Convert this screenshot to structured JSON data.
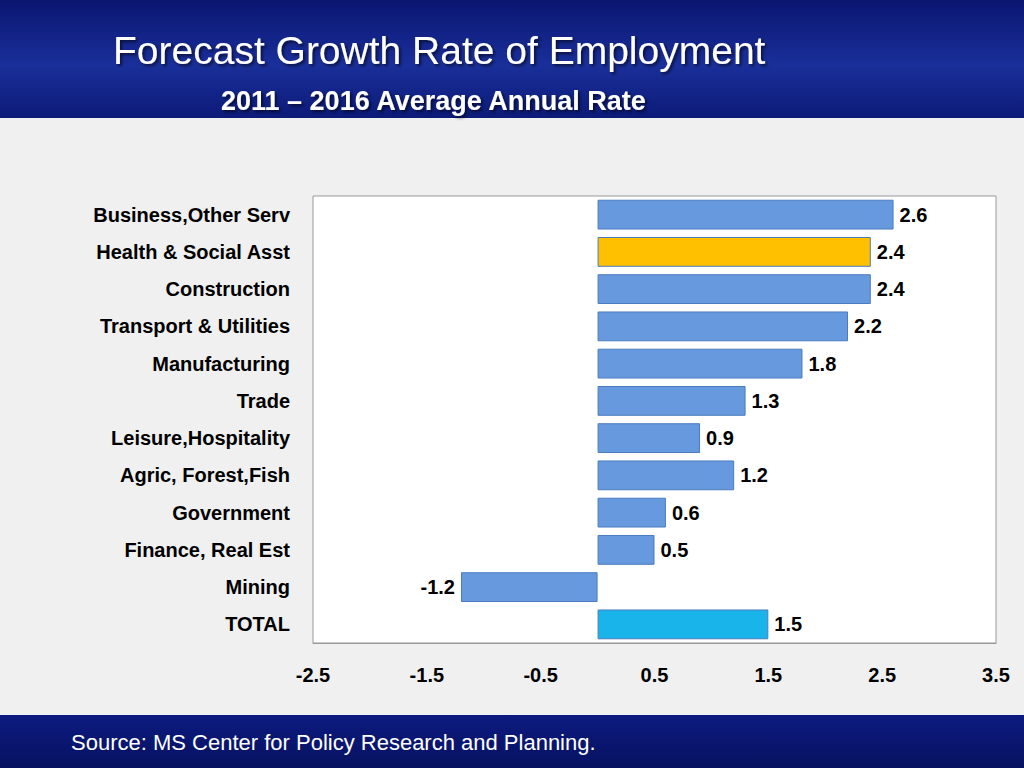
{
  "chart_data": {
    "type": "bar",
    "orientation": "horizontal",
    "title": "Forecast Growth Rate of Employment",
    "subtitle": "2011 – 2016 Average Annual Rate",
    "source": "Source: MS Center for Policy Research and Planning.",
    "categories": [
      "Business,Other Serv",
      "Health & Social Asst",
      "Construction",
      "Transport & Utilities",
      "Manufacturing",
      "Trade",
      "Leisure,Hospitality",
      "Agric, Forest,Fish",
      "Government",
      "Finance, Real Est",
      "Mining",
      "TOTAL"
    ],
    "values": [
      2.6,
      2.4,
      2.4,
      2.2,
      1.8,
      1.3,
      0.9,
      1.2,
      0.6,
      0.5,
      -1.2,
      1.5
    ],
    "colors": [
      "#6699dd",
      "#ffc000",
      "#6699dd",
      "#6699dd",
      "#6699dd",
      "#6699dd",
      "#6699dd",
      "#6699dd",
      "#6699dd",
      "#6699dd",
      "#6699dd",
      "#19b5ea"
    ],
    "xlim": [
      -2.5,
      3.5
    ],
    "xticks": [
      -2.5,
      -1.5,
      -0.5,
      0.5,
      1.5,
      2.5,
      3.5
    ],
    "grid": false,
    "data_labels": true
  }
}
